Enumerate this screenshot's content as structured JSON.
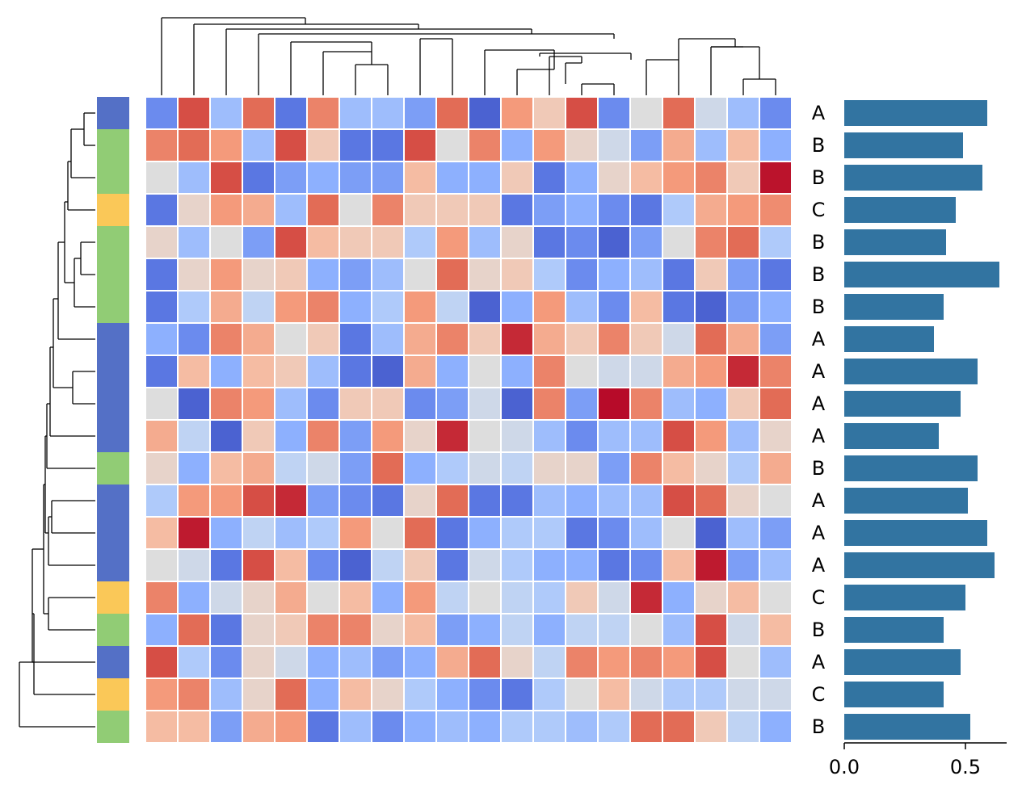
{
  "colors": {
    "A": "#5470c6",
    "B": "#91cc75",
    "C": "#fac858",
    "bar": "#3274a1",
    "cell_border": "#ffffff"
  },
  "chart_data": [
    {
      "type": "heatmap",
      "colormap": "coolwarm",
      "value_range": [
        0,
        1
      ],
      "row_groups": [
        "A",
        "B",
        "B",
        "C",
        "B",
        "B",
        "B",
        "A",
        "A",
        "A",
        "A",
        "B",
        "A",
        "A",
        "A",
        "C",
        "B",
        "A",
        "C",
        "B"
      ],
      "values": [
        [
          0.15,
          0.9,
          0.3,
          0.85,
          0.1,
          0.8,
          0.3,
          0.3,
          0.2,
          0.85,
          0.05,
          0.75,
          0.6,
          0.9,
          0.15,
          0.5,
          0.85,
          0.45,
          0.3,
          0.15
        ],
        [
          0.8,
          0.85,
          0.75,
          0.3,
          0.9,
          0.6,
          0.1,
          0.1,
          0.9,
          0.5,
          0.8,
          0.25,
          0.75,
          0.55,
          0.45,
          0.2,
          0.7,
          0.3,
          0.65,
          0.25
        ],
        [
          0.5,
          0.3,
          0.9,
          0.1,
          0.2,
          0.25,
          0.2,
          0.2,
          0.65,
          0.25,
          0.25,
          0.6,
          0.1,
          0.25,
          0.55,
          0.65,
          0.75,
          0.8,
          0.6,
          0.98
        ],
        [
          0.1,
          0.55,
          0.75,
          0.7,
          0.3,
          0.85,
          0.5,
          0.8,
          0.6,
          0.6,
          0.6,
          0.1,
          0.2,
          0.25,
          0.15,
          0.1,
          0.35,
          0.7,
          0.75,
          0.78
        ],
        [
          0.55,
          0.3,
          0.5,
          0.2,
          0.9,
          0.65,
          0.6,
          0.6,
          0.35,
          0.75,
          0.3,
          0.55,
          0.1,
          0.15,
          0.05,
          0.2,
          0.5,
          0.8,
          0.85,
          0.35
        ],
        [
          0.1,
          0.55,
          0.75,
          0.55,
          0.6,
          0.25,
          0.2,
          0.3,
          0.5,
          0.85,
          0.55,
          0.6,
          0.35,
          0.15,
          0.25,
          0.3,
          0.1,
          0.6,
          0.2,
          0.1
        ],
        [
          0.1,
          0.35,
          0.7,
          0.4,
          0.75,
          0.8,
          0.25,
          0.35,
          0.75,
          0.4,
          0.05,
          0.25,
          0.75,
          0.3,
          0.15,
          0.65,
          0.1,
          0.05,
          0.2,
          0.25
        ],
        [
          0.25,
          0.15,
          0.8,
          0.7,
          0.5,
          0.6,
          0.1,
          0.3,
          0.7,
          0.8,
          0.6,
          0.95,
          0.7,
          0.6,
          0.8,
          0.6,
          0.45,
          0.85,
          0.7,
          0.2
        ],
        [
          0.1,
          0.65,
          0.25,
          0.65,
          0.6,
          0.3,
          0.1,
          0.05,
          0.7,
          0.25,
          0.5,
          0.25,
          0.8,
          0.5,
          0.45,
          0.45,
          0.7,
          0.75,
          0.95,
          0.8
        ],
        [
          0.5,
          0.05,
          0.8,
          0.75,
          0.3,
          0.15,
          0.6,
          0.6,
          0.15,
          0.2,
          0.45,
          0.05,
          0.8,
          0.2,
          0.99,
          0.8,
          0.3,
          0.25,
          0.6,
          0.85
        ],
        [
          0.7,
          0.4,
          0.05,
          0.6,
          0.25,
          0.8,
          0.2,
          0.75,
          0.55,
          0.95,
          0.5,
          0.45,
          0.3,
          0.15,
          0.3,
          0.3,
          0.9,
          0.75,
          0.3,
          0.55
        ],
        [
          0.55,
          0.25,
          0.65,
          0.7,
          0.4,
          0.45,
          0.2,
          0.85,
          0.25,
          0.35,
          0.45,
          0.4,
          0.55,
          0.55,
          0.2,
          0.8,
          0.65,
          0.55,
          0.35,
          0.7
        ],
        [
          0.35,
          0.75,
          0.75,
          0.9,
          0.95,
          0.2,
          0.15,
          0.1,
          0.55,
          0.85,
          0.1,
          0.1,
          0.3,
          0.25,
          0.3,
          0.3,
          0.9,
          0.85,
          0.55,
          0.5
        ],
        [
          0.65,
          0.97,
          0.25,
          0.4,
          0.3,
          0.35,
          0.75,
          0.5,
          0.85,
          0.1,
          0.25,
          0.35,
          0.35,
          0.1,
          0.15,
          0.3,
          0.5,
          0.05,
          0.3,
          0.2
        ],
        [
          0.5,
          0.45,
          0.1,
          0.9,
          0.65,
          0.15,
          0.05,
          0.4,
          0.6,
          0.1,
          0.45,
          0.35,
          0.25,
          0.25,
          0.1,
          0.15,
          0.65,
          0.97,
          0.2,
          0.3
        ],
        [
          0.8,
          0.25,
          0.45,
          0.55,
          0.7,
          0.5,
          0.65,
          0.25,
          0.75,
          0.4,
          0.5,
          0.4,
          0.35,
          0.6,
          0.45,
          0.95,
          0.25,
          0.55,
          0.65,
          0.5
        ],
        [
          0.25,
          0.85,
          0.1,
          0.55,
          0.6,
          0.8,
          0.8,
          0.55,
          0.65,
          0.2,
          0.25,
          0.4,
          0.25,
          0.4,
          0.4,
          0.5,
          0.3,
          0.9,
          0.45,
          0.65
        ],
        [
          0.9,
          0.35,
          0.15,
          0.55,
          0.45,
          0.25,
          0.3,
          0.2,
          0.25,
          0.7,
          0.85,
          0.55,
          0.4,
          0.8,
          0.75,
          0.8,
          0.75,
          0.9,
          0.5,
          0.3
        ],
        [
          0.75,
          0.8,
          0.3,
          0.55,
          0.85,
          0.25,
          0.65,
          0.55,
          0.35,
          0.25,
          0.15,
          0.1,
          0.35,
          0.5,
          0.65,
          0.45,
          0.35,
          0.35,
          0.45,
          0.45
        ],
        [
          0.65,
          0.65,
          0.2,
          0.7,
          0.75,
          0.1,
          0.3,
          0.15,
          0.25,
          0.3,
          0.25,
          0.35,
          0.35,
          0.3,
          0.35,
          0.85,
          0.85,
          0.6,
          0.4,
          0.25
        ]
      ]
    },
    {
      "type": "bar",
      "orientation": "horizontal",
      "categories": [
        "A",
        "B",
        "B",
        "C",
        "B",
        "B",
        "B",
        "A",
        "A",
        "A",
        "A",
        "B",
        "A",
        "A",
        "A",
        "C",
        "B",
        "A",
        "C",
        "B"
      ],
      "values": [
        0.59,
        0.49,
        0.57,
        0.46,
        0.42,
        0.64,
        0.41,
        0.37,
        0.55,
        0.48,
        0.39,
        0.55,
        0.51,
        0.59,
        0.62,
        0.5,
        0.41,
        0.48,
        0.41,
        0.52
      ],
      "xlim": [
        0,
        0.67
      ],
      "x_ticks": [
        0.0,
        0.5
      ],
      "x_tick_labels": [
        "0.0",
        "0.5"
      ]
    }
  ]
}
